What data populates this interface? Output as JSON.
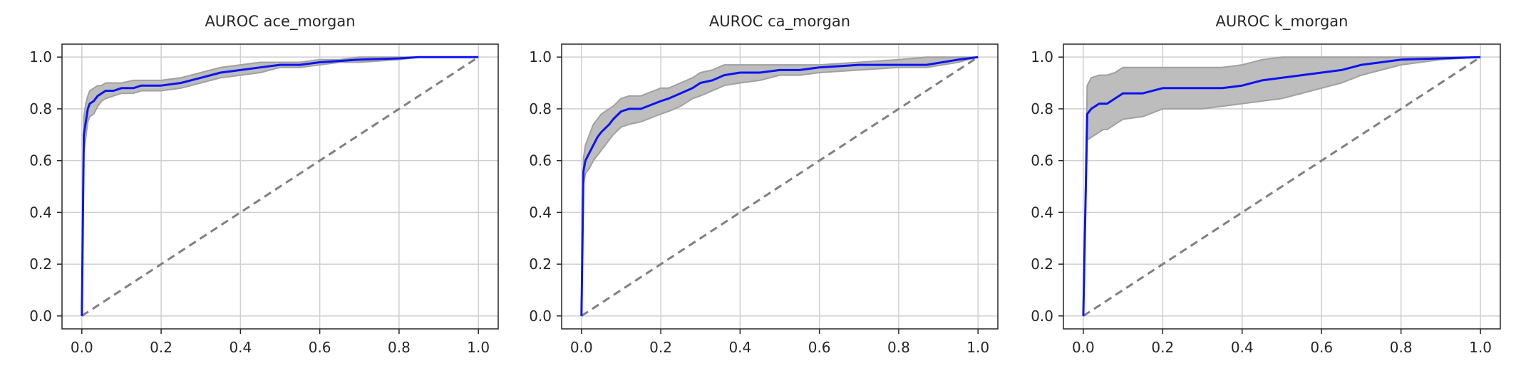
{
  "figure": {
    "background": "#ffffff",
    "grid_color": "#cfcfcf",
    "frame_color": "#262626",
    "roc_color": "#0a14f0",
    "band_color": "#a0a0a0",
    "band_fill": "#bdbdbd",
    "diagonal_color": "#808080"
  },
  "chart_data": [
    {
      "type": "line",
      "title": "AUROC ace_morgan",
      "xlabel": "",
      "ylabel": "",
      "xlim": [
        -0.05,
        1.05
      ],
      "ylim": [
        -0.05,
        1.05
      ],
      "xticks": [
        0.0,
        0.2,
        0.4,
        0.6,
        0.8,
        1.0
      ],
      "yticks": [
        0.0,
        0.2,
        0.4,
        0.6,
        0.8,
        1.0
      ],
      "tick_labels": [
        "0.0",
        "0.2",
        "0.4",
        "0.6",
        "0.8",
        "1.0"
      ],
      "grid": true,
      "series": [
        {
          "role": "mean_roc",
          "x": [
            0,
            0.005,
            0.01,
            0.015,
            0.02,
            0.03,
            0.04,
            0.05,
            0.06,
            0.08,
            0.1,
            0.13,
            0.15,
            0.2,
            0.25,
            0.3,
            0.35,
            0.4,
            0.45,
            0.5,
            0.55,
            0.6,
            0.65,
            0.7,
            0.8,
            0.85,
            0.9,
            1.0
          ],
          "y": [
            0,
            0.7,
            0.75,
            0.8,
            0.82,
            0.83,
            0.85,
            0.86,
            0.87,
            0.87,
            0.88,
            0.88,
            0.89,
            0.89,
            0.9,
            0.92,
            0.94,
            0.95,
            0.96,
            0.97,
            0.97,
            0.98,
            0.985,
            0.99,
            0.995,
            1.0,
            1.0,
            1.0
          ]
        },
        {
          "role": "upper_band",
          "x": [
            0,
            0.005,
            0.01,
            0.015,
            0.02,
            0.03,
            0.04,
            0.05,
            0.06,
            0.08,
            0.1,
            0.13,
            0.15,
            0.2,
            0.25,
            0.3,
            0.35,
            0.4,
            0.45,
            0.5,
            0.55,
            0.6,
            0.65,
            0.7,
            0.8,
            0.85,
            0.9,
            1.0
          ],
          "y": [
            0,
            0.77,
            0.82,
            0.85,
            0.87,
            0.88,
            0.89,
            0.89,
            0.9,
            0.9,
            0.9,
            0.91,
            0.91,
            0.91,
            0.92,
            0.94,
            0.96,
            0.97,
            0.98,
            0.98,
            0.98,
            0.99,
            0.99,
            1.0,
            1.0,
            1.0,
            1.0,
            1.0
          ]
        },
        {
          "role": "lower_band",
          "x": [
            0,
            0.005,
            0.01,
            0.015,
            0.02,
            0.03,
            0.04,
            0.05,
            0.06,
            0.08,
            0.1,
            0.13,
            0.15,
            0.2,
            0.25,
            0.3,
            0.35,
            0.4,
            0.45,
            0.5,
            0.55,
            0.6,
            0.65,
            0.7,
            0.8,
            0.85,
            0.9,
            1.0
          ],
          "y": [
            0,
            0.63,
            0.69,
            0.75,
            0.77,
            0.78,
            0.81,
            0.83,
            0.84,
            0.85,
            0.86,
            0.86,
            0.87,
            0.87,
            0.88,
            0.9,
            0.92,
            0.93,
            0.94,
            0.96,
            0.96,
            0.97,
            0.98,
            0.98,
            0.99,
            1.0,
            1.0,
            1.0
          ]
        },
        {
          "role": "chance_diagonal",
          "x": [
            0,
            1
          ],
          "y": [
            0,
            1
          ]
        }
      ]
    },
    {
      "type": "line",
      "title": "AUROC ca_morgan",
      "xlabel": "",
      "ylabel": "",
      "xlim": [
        -0.05,
        1.05
      ],
      "ylim": [
        -0.05,
        1.05
      ],
      "xticks": [
        0.0,
        0.2,
        0.4,
        0.6,
        0.8,
        1.0
      ],
      "yticks": [
        0.0,
        0.2,
        0.4,
        0.6,
        0.8,
        1.0
      ],
      "tick_labels": [
        "0.0",
        "0.2",
        "0.4",
        "0.6",
        "0.8",
        "1.0"
      ],
      "grid": true,
      "series": [
        {
          "role": "mean_roc",
          "x": [
            0,
            0.005,
            0.01,
            0.02,
            0.03,
            0.04,
            0.05,
            0.07,
            0.08,
            0.1,
            0.12,
            0.15,
            0.2,
            0.22,
            0.25,
            0.28,
            0.3,
            0.33,
            0.36,
            0.4,
            0.45,
            0.5,
            0.55,
            0.6,
            0.7,
            0.8,
            0.87,
            0.95,
            1.0
          ],
          "y": [
            0,
            0.56,
            0.6,
            0.63,
            0.66,
            0.69,
            0.71,
            0.74,
            0.76,
            0.79,
            0.8,
            0.8,
            0.83,
            0.84,
            0.86,
            0.88,
            0.9,
            0.91,
            0.93,
            0.94,
            0.94,
            0.95,
            0.95,
            0.96,
            0.97,
            0.97,
            0.97,
            0.99,
            1.0
          ]
        },
        {
          "role": "upper_band",
          "x": [
            0,
            0.005,
            0.01,
            0.02,
            0.03,
            0.04,
            0.05,
            0.07,
            0.08,
            0.1,
            0.12,
            0.15,
            0.2,
            0.22,
            0.25,
            0.28,
            0.3,
            0.33,
            0.36,
            0.4,
            0.45,
            0.5,
            0.55,
            0.6,
            0.7,
            0.8,
            0.87,
            0.95,
            1.0
          ],
          "y": [
            0,
            0.61,
            0.66,
            0.7,
            0.74,
            0.76,
            0.78,
            0.8,
            0.81,
            0.84,
            0.85,
            0.85,
            0.88,
            0.88,
            0.9,
            0.92,
            0.94,
            0.95,
            0.97,
            0.97,
            0.97,
            0.97,
            0.97,
            0.97,
            0.98,
            0.99,
            1.0,
            1.0,
            1.0
          ]
        },
        {
          "role": "lower_band",
          "x": [
            0,
            0.005,
            0.01,
            0.02,
            0.03,
            0.04,
            0.05,
            0.07,
            0.08,
            0.1,
            0.12,
            0.15,
            0.2,
            0.22,
            0.25,
            0.28,
            0.3,
            0.33,
            0.36,
            0.4,
            0.45,
            0.5,
            0.55,
            0.6,
            0.7,
            0.8,
            0.87,
            0.95,
            1.0
          ],
          "y": [
            0,
            0.51,
            0.55,
            0.57,
            0.6,
            0.62,
            0.64,
            0.68,
            0.7,
            0.73,
            0.74,
            0.75,
            0.78,
            0.79,
            0.81,
            0.84,
            0.85,
            0.87,
            0.89,
            0.9,
            0.91,
            0.93,
            0.93,
            0.94,
            0.95,
            0.96,
            0.96,
            0.98,
            1.0
          ]
        },
        {
          "role": "chance_diagonal",
          "x": [
            0,
            1
          ],
          "y": [
            0,
            1
          ]
        }
      ]
    },
    {
      "type": "line",
      "title": "AUROC k_morgan",
      "xlabel": "",
      "ylabel": "",
      "xlim": [
        -0.05,
        1.05
      ],
      "ylim": [
        -0.05,
        1.05
      ],
      "xticks": [
        0.0,
        0.2,
        0.4,
        0.6,
        0.8,
        1.0
      ],
      "yticks": [
        0.0,
        0.2,
        0.4,
        0.6,
        0.8,
        1.0
      ],
      "tick_labels": [
        "0.0",
        "0.2",
        "0.4",
        "0.6",
        "0.8",
        "1.0"
      ],
      "grid": true,
      "series": [
        {
          "role": "mean_roc",
          "x": [
            0,
            0.01,
            0.02,
            0.04,
            0.05,
            0.06,
            0.08,
            0.1,
            0.15,
            0.2,
            0.25,
            0.3,
            0.35,
            0.4,
            0.45,
            0.5,
            0.55,
            0.6,
            0.65,
            0.7,
            0.75,
            0.8,
            0.9,
            1.0
          ],
          "y": [
            0,
            0.78,
            0.8,
            0.82,
            0.82,
            0.82,
            0.84,
            0.86,
            0.86,
            0.88,
            0.88,
            0.88,
            0.88,
            0.89,
            0.91,
            0.92,
            0.93,
            0.94,
            0.95,
            0.97,
            0.98,
            0.99,
            0.995,
            1.0
          ]
        },
        {
          "role": "upper_band",
          "x": [
            0,
            0.01,
            0.02,
            0.04,
            0.05,
            0.06,
            0.08,
            0.1,
            0.15,
            0.2,
            0.25,
            0.3,
            0.35,
            0.4,
            0.45,
            0.5,
            0.55,
            0.6,
            0.65,
            0.7,
            0.75,
            0.8,
            0.9,
            1.0
          ],
          "y": [
            0,
            0.89,
            0.92,
            0.93,
            0.93,
            0.93,
            0.94,
            0.96,
            0.96,
            0.96,
            0.96,
            0.96,
            0.96,
            0.97,
            0.99,
            1.0,
            1.0,
            1.0,
            1.0,
            1.0,
            1.0,
            1.0,
            1.0,
            1.0
          ]
        },
        {
          "role": "lower_band",
          "x": [
            0,
            0.01,
            0.02,
            0.04,
            0.05,
            0.06,
            0.08,
            0.1,
            0.15,
            0.2,
            0.25,
            0.3,
            0.35,
            0.4,
            0.45,
            0.5,
            0.55,
            0.6,
            0.65,
            0.7,
            0.75,
            0.8,
            0.9,
            1.0
          ],
          "y": [
            0,
            0.68,
            0.69,
            0.71,
            0.72,
            0.72,
            0.74,
            0.76,
            0.77,
            0.8,
            0.8,
            0.8,
            0.81,
            0.82,
            0.83,
            0.84,
            0.86,
            0.88,
            0.9,
            0.93,
            0.95,
            0.97,
            0.99,
            1.0
          ]
        },
        {
          "role": "chance_diagonal",
          "x": [
            0,
            1
          ],
          "y": [
            0,
            1
          ]
        }
      ]
    }
  ]
}
